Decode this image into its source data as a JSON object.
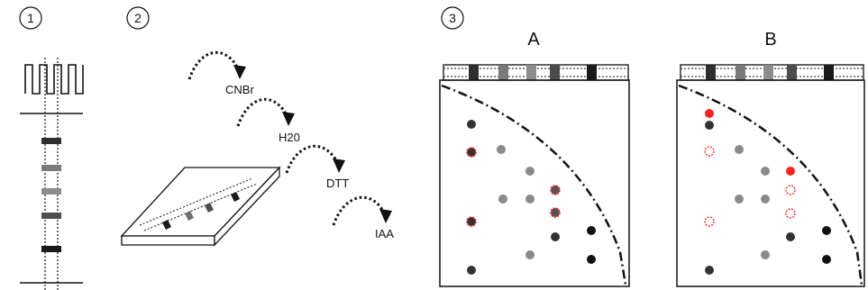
{
  "steps": {
    "one": "1",
    "two": "2",
    "three": "3"
  },
  "reagents": [
    "CNBr",
    "H20",
    "DTT",
    "IAA"
  ],
  "panels": {
    "a_title": "A",
    "b_title": "B"
  },
  "colors": {
    "ink": "#111111",
    "dark_band": "#2e2e2e",
    "mid_band": "#7a7a7a",
    "light_band": "#8c8c8c",
    "spot_dark": "#333333",
    "spot_gray": "#8a8a8a",
    "spot_black": "#111111",
    "highlight_red": "#ff2020"
  }
}
